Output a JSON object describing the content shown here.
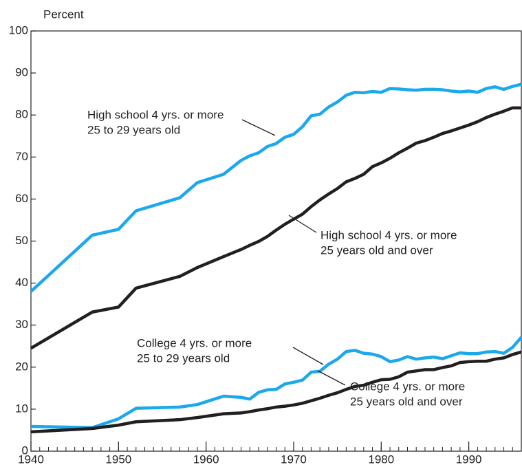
{
  "chart_data": {
    "type": "line",
    "y_label": "Percent",
    "x": [
      1940,
      1947,
      1950,
      1952,
      1957,
      1959,
      1962,
      1964,
      1965,
      1966,
      1967,
      1968,
      1969,
      1970,
      1971,
      1972,
      1973,
      1974,
      1975,
      1976,
      1977,
      1978,
      1979,
      1980,
      1981,
      1982,
      1983,
      1984,
      1985,
      1986,
      1987,
      1988,
      1989,
      1990,
      1991,
      1992,
      1993,
      1994,
      1995,
      1996
    ],
    "series": [
      {
        "label": [
          "High school 4 yrs. or more",
          "25 to 29 years old"
        ],
        "color": "#1ba8ec",
        "values": [
          38.0,
          51.4,
          52.8,
          57.2,
          60.3,
          63.9,
          65.9,
          69.2,
          70.3,
          71.0,
          72.5,
          73.2,
          74.7,
          75.4,
          77.2,
          79.8,
          80.2,
          81.9,
          83.1,
          84.7,
          85.4,
          85.3,
          85.6,
          85.4,
          86.3,
          86.2,
          86.0,
          85.9,
          86.1,
          86.1,
          86.0,
          85.7,
          85.5,
          85.7,
          85.4,
          86.3,
          86.7,
          86.1,
          86.8,
          87.3
        ]
      },
      {
        "label": [
          "High school 4 yrs. or more",
          "25 years old and over"
        ],
        "color": "#231f20",
        "values": [
          24.5,
          33.1,
          34.3,
          38.8,
          41.6,
          43.7,
          46.3,
          48.0,
          49.0,
          49.9,
          51.1,
          52.6,
          54.0,
          55.2,
          56.4,
          58.2,
          59.8,
          61.2,
          62.5,
          64.1,
          64.9,
          65.9,
          67.7,
          68.6,
          69.7,
          71.0,
          72.1,
          73.3,
          73.9,
          74.7,
          75.6,
          76.2,
          76.9,
          77.6,
          78.4,
          79.4,
          80.2,
          80.9,
          81.7,
          81.7
        ]
      },
      {
        "label": [
          "College 4 yrs. or more",
          "25 to 29 years old"
        ],
        "color": "#1ba8ec",
        "values": [
          5.9,
          5.6,
          7.7,
          10.2,
          10.5,
          11.1,
          13.1,
          12.8,
          12.4,
          14.0,
          14.6,
          14.7,
          16.0,
          16.4,
          16.9,
          18.8,
          19.0,
          20.7,
          21.9,
          23.7,
          24.0,
          23.3,
          23.1,
          22.5,
          21.3,
          21.7,
          22.5,
          21.9,
          22.2,
          22.4,
          22.0,
          22.7,
          23.4,
          23.2,
          23.2,
          23.6,
          23.7,
          23.3,
          24.7,
          27.1
        ]
      },
      {
        "label": [
          "College 4 yrs. or more",
          "25 years old and over"
        ],
        "color": "#231f20",
        "values": [
          4.6,
          5.4,
          6.2,
          7.0,
          7.5,
          8.0,
          8.9,
          9.1,
          9.4,
          9.8,
          10.1,
          10.5,
          10.7,
          11.0,
          11.4,
          12.0,
          12.6,
          13.3,
          13.9,
          14.7,
          15.4,
          15.7,
          16.4,
          17.0,
          17.1,
          17.7,
          18.8,
          19.1,
          19.4,
          19.4,
          19.9,
          20.3,
          21.1,
          21.3,
          21.4,
          21.4,
          21.9,
          22.2,
          23.0,
          23.6
        ]
      }
    ],
    "xlim": [
      1940,
      1996
    ],
    "xticks": [
      1940,
      1950,
      1960,
      1970,
      1980,
      1990
    ],
    "minor_xticks": [
      1940,
      1941,
      1942,
      1943,
      1944,
      1945,
      1946,
      1947,
      1948,
      1949,
      1950,
      1951,
      1952,
      1953,
      1954,
      1955,
      1956,
      1957,
      1958,
      1959,
      1960,
      1961,
      1962,
      1963,
      1964,
      1965,
      1966,
      1967,
      1968,
      1969,
      1970,
      1971,
      1972,
      1973,
      1974,
      1975,
      1976,
      1977,
      1978,
      1979,
      1980,
      1981,
      1982,
      1983,
      1984,
      1985,
      1986,
      1987,
      1988,
      1989,
      1990,
      1991,
      1992,
      1993,
      1994,
      1995,
      1996
    ],
    "ylim": [
      0,
      100
    ],
    "yticks": [
      0,
      10,
      20,
      30,
      40,
      50,
      60,
      70,
      80,
      90,
      100
    ],
    "grid": false
  }
}
